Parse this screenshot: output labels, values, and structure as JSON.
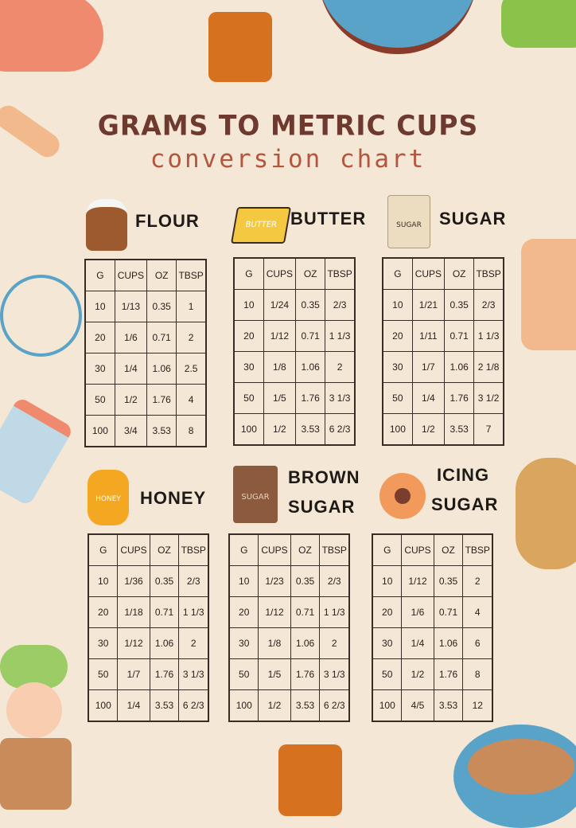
{
  "title": "GRAMS TO METRIC CUPS",
  "subtitle": "conversion chart",
  "headers": [
    "G",
    "CUPS",
    "OZ",
    "TBSP"
  ],
  "sections": [
    {
      "label": [
        "FLOUR"
      ],
      "icon": "flour-sack-icon",
      "rows": [
        [
          "10",
          "1/13",
          "0.35",
          "1"
        ],
        [
          "20",
          "1/6",
          "0.71",
          "2"
        ],
        [
          "30",
          "1/4",
          "1.06",
          "2.5"
        ],
        [
          "50",
          "1/2",
          "1.76",
          "4"
        ],
        [
          "100",
          "3/4",
          "3.53",
          "8"
        ]
      ]
    },
    {
      "label": [
        "BUTTER"
      ],
      "icon": "butter-icon",
      "icon_text": "BUTTER",
      "rows": [
        [
          "10",
          "1/24",
          "0.35",
          "2/3"
        ],
        [
          "20",
          "1/12",
          "0.71",
          "1 1/3"
        ],
        [
          "30",
          "1/8",
          "1.06",
          "2"
        ],
        [
          "50",
          "1/5",
          "1.76",
          "3 1/3"
        ],
        [
          "100",
          "1/2",
          "3.53",
          "6 2/3"
        ]
      ]
    },
    {
      "label": [
        "SUGAR"
      ],
      "icon": "sugar-bag-icon",
      "icon_text": "SUGAR",
      "rows": [
        [
          "10",
          "1/21",
          "0.35",
          "2/3"
        ],
        [
          "20",
          "1/11",
          "0.71",
          "1 1/3"
        ],
        [
          "30",
          "1/7",
          "1.06",
          "2 1/8"
        ],
        [
          "50",
          "1/4",
          "1.76",
          "3 1/2"
        ],
        [
          "100",
          "1/2",
          "3.53",
          "7"
        ]
      ]
    },
    {
      "label": [
        "HONEY"
      ],
      "icon": "honey-jar-icon",
      "icon_text": "HONEY",
      "rows": [
        [
          "10",
          "1/36",
          "0.35",
          "2/3"
        ],
        [
          "20",
          "1/18",
          "0.71",
          "1 1/3"
        ],
        [
          "30",
          "1/12",
          "1.06",
          "2"
        ],
        [
          "50",
          "1/7",
          "1.76",
          "3 1/3"
        ],
        [
          "100",
          "1/4",
          "3.53",
          "6 2/3"
        ]
      ]
    },
    {
      "label": [
        "BROWN",
        "SUGAR"
      ],
      "icon": "brown-sugar-bag-icon",
      "icon_text": "SUGAR",
      "rows": [
        [
          "10",
          "1/23",
          "0.35",
          "2/3"
        ],
        [
          "20",
          "1/12",
          "0.71",
          "1 1/3"
        ],
        [
          "30",
          "1/8",
          "1.06",
          "2"
        ],
        [
          "50",
          "1/5",
          "1.76",
          "3 1/3"
        ],
        [
          "100",
          "1/2",
          "3.53",
          "6 2/3"
        ]
      ]
    },
    {
      "label": [
        "ICING",
        "SUGAR"
      ],
      "icon": "cookie-icon",
      "rows": [
        [
          "10",
          "1/12",
          "0.35",
          "2"
        ],
        [
          "20",
          "1/6",
          "0.71",
          "4"
        ],
        [
          "30",
          "1/4",
          "1.06",
          "6"
        ],
        [
          "50",
          "1/2",
          "1.76",
          "8"
        ],
        [
          "100",
          "4/5",
          "3.53",
          "12"
        ]
      ]
    }
  ],
  "colors": {
    "background": "#f4e7d5",
    "title": "#6e3a30",
    "subtitle": "#b4553d",
    "grid": "#3a2c25"
  }
}
